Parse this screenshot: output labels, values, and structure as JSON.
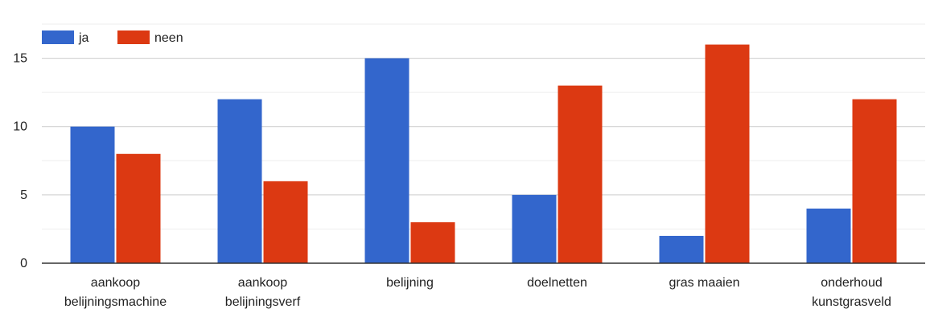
{
  "chart_data": {
    "type": "bar",
    "categories": [
      [
        "aankoop",
        "belijningsmachine"
      ],
      [
        "aankoop",
        "belijningsverf"
      ],
      [
        "belijning"
      ],
      [
        "doelnetten"
      ],
      [
        "gras maaien"
      ],
      [
        "onderhoud",
        "kunstgrasveld"
      ]
    ],
    "series": [
      {
        "name": "ja",
        "color": "#3366cc",
        "values": [
          10,
          12,
          15,
          5,
          2,
          4
        ]
      },
      {
        "name": "neen",
        "color": "#dc3912",
        "values": [
          8,
          6,
          3,
          13,
          16,
          12
        ]
      }
    ],
    "ylim": [
      0,
      17.5
    ],
    "yticks": [
      0,
      5,
      10,
      15
    ],
    "minor_gridlines": true,
    "legend_position": "top-left"
  }
}
